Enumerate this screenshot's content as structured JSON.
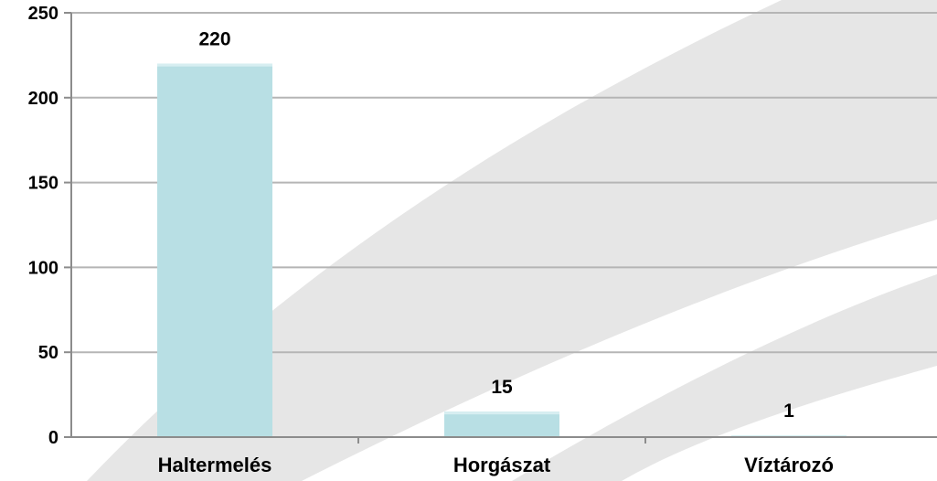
{
  "chart_data": {
    "type": "bar",
    "categories": [
      "Haltermelés",
      "Horgászat",
      "Víztározó"
    ],
    "values": [
      220,
      15,
      1
    ],
    "data_labels": [
      "220",
      "15",
      "1"
    ],
    "ylim": [
      0,
      250
    ],
    "yticks": [
      0,
      50,
      100,
      150,
      200,
      250
    ],
    "ytick_labels": [
      "0",
      "50",
      "100",
      "150",
      "200",
      "250"
    ],
    "grid": true,
    "legend": "none",
    "colors": {
      "bar": "#b8dfe4",
      "bar_highlight": "#d7eef1",
      "grid": "#b5b5b5",
      "axis": "#8c8c8c",
      "background_band": "#e6e6e6"
    }
  }
}
